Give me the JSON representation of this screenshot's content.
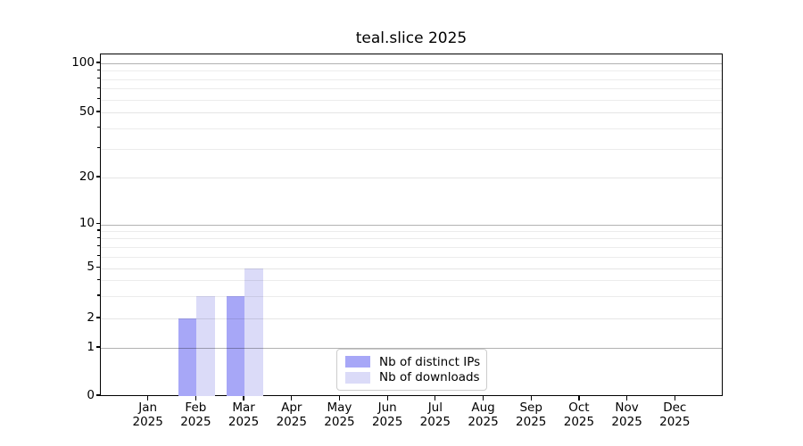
{
  "chart_data": {
    "type": "bar",
    "title": "teal.slice 2025",
    "categories": [
      "Jan 2025",
      "Feb 2025",
      "Mar 2025",
      "Apr 2025",
      "May 2025",
      "Jun 2025",
      "Jul 2025",
      "Aug 2025",
      "Sep 2025",
      "Oct 2025",
      "Nov 2025",
      "Dec 2025"
    ],
    "series": [
      {
        "name": "Nb of distinct IPs",
        "color": "#a7a7f7",
        "values": [
          0,
          2,
          3,
          0,
          0,
          0,
          0,
          0,
          0,
          0,
          0,
          0
        ]
      },
      {
        "name": "Nb of downloads",
        "color": "#dbdbf8",
        "values": [
          0,
          3,
          5,
          0,
          0,
          0,
          0,
          0,
          0,
          0,
          0,
          0
        ]
      }
    ],
    "xlabel": "",
    "ylabel": "",
    "y_axis": {
      "scale": "log-like (linear near zero)",
      "ticks": [
        0,
        1,
        2,
        5,
        10,
        20,
        50,
        100
      ],
      "minor_gridlines": [
        3,
        4,
        6,
        7,
        8,
        9,
        30,
        40,
        60,
        70,
        80,
        90
      ],
      "major_emphasis": [
        1,
        10,
        100
      ],
      "range": [
        0,
        113
      ]
    },
    "grid": {
      "horizontal": true,
      "drawn_above_bars": true
    },
    "legend": {
      "position": "lower center",
      "border_color": "#cccccc"
    }
  }
}
